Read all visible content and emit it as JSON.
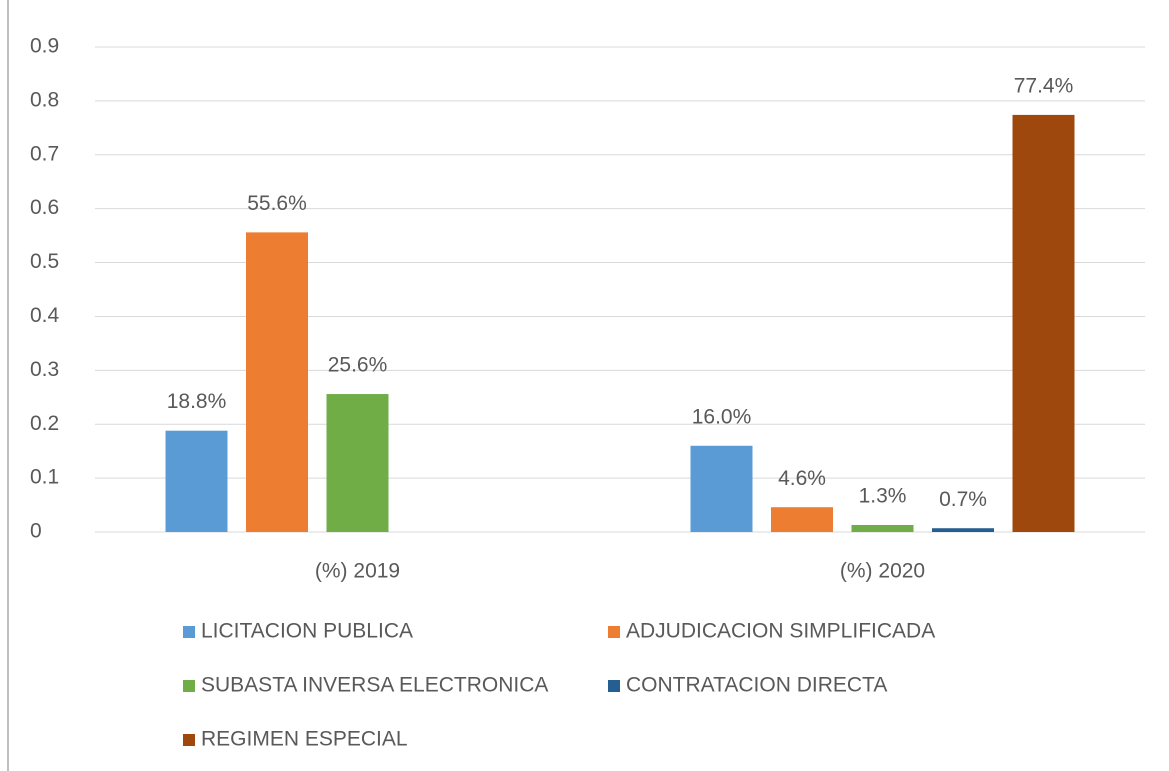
{
  "chart_data": {
    "type": "bar",
    "categories": [
      "(%) 2019",
      "(%) 2020"
    ],
    "series": [
      {
        "name": "LICITACION PUBLICA",
        "color": "#5b9bd5",
        "values": [
          0.188,
          0.16
        ],
        "value_labels": [
          "18.8%",
          "16.0%"
        ]
      },
      {
        "name": "ADJUDICACION SIMPLIFICADA",
        "color": "#ed7d31",
        "values": [
          0.556,
          0.046
        ],
        "value_labels": [
          "55.6%",
          "4.6%"
        ]
      },
      {
        "name": "SUBASTA INVERSA ELECTRONICA",
        "color": "#70ad47",
        "values": [
          0.256,
          0.013
        ],
        "value_labels": [
          "25.6%",
          "1.3%"
        ]
      },
      {
        "name": "CONTRATACION DIRECTA",
        "color": "#255e91",
        "values": [
          null,
          0.007
        ],
        "value_labels": [
          null,
          "0.7%"
        ]
      },
      {
        "name": "REGIMEN ESPECIAL",
        "color": "#9e480e",
        "values": [
          null,
          0.774
        ],
        "value_labels": [
          null,
          "77.4%"
        ]
      }
    ],
    "ylim": [
      0,
      0.9
    ],
    "yticks": [
      0,
      0.1,
      0.2,
      0.3,
      0.4,
      0.5,
      0.6,
      0.7,
      0.8,
      0.9
    ],
    "grid": true,
    "legend": "bottom"
  }
}
